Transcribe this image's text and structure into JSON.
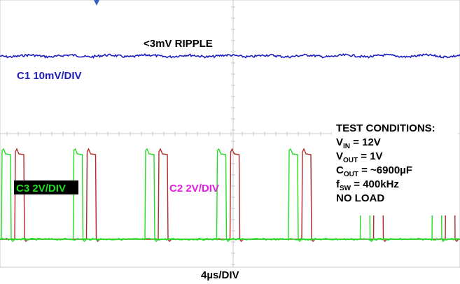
{
  "chart_data": {
    "type": "line",
    "title": "",
    "annotation": "<3mV RIPPLE",
    "xlabel": "4µs/DIV",
    "grid": true,
    "time_per_div_us": 4,
    "switching_frequency_khz": 400,
    "series": [
      {
        "name": "C1 10mV/DIV",
        "channel": "C1",
        "scale": "10mV/DIV",
        "color": "#1f1fbf",
        "waveform": "output voltage ripple",
        "ripple_mv_max": 3
      },
      {
        "name": "C2 2V/DIV",
        "channel": "C2",
        "scale": "2V/DIV",
        "color": "#b22a2a",
        "waveform": "switch node pulse train",
        "frequency_khz": 400
      },
      {
        "name": "C3 2V/DIV",
        "channel": "C3",
        "scale": "2V/DIV",
        "color": "#22dd22",
        "waveform": "switch node pulse train",
        "frequency_khz": 400
      }
    ],
    "test_conditions": {
      "heading": "TEST CONDITIONS:",
      "lines": [
        {
          "sym": "V",
          "sub": "IN",
          "value": " = 12V"
        },
        {
          "sym": "V",
          "sub": "OUT",
          "value": " = 1V"
        },
        {
          "sym": "C",
          "sub": "OUT",
          "value": " = ~6900µF"
        },
        {
          "sym": "f",
          "sub": "SW",
          "value": " = 400kHz"
        },
        {
          "sym": "NO LOAD",
          "sub": "",
          "value": ""
        }
      ]
    }
  },
  "colors": {
    "grid": "#c8c8c8",
    "c1": "#1f1fbf",
    "c2": "#b22a2a",
    "c3": "#22dd22",
    "marker": "#3060c0"
  }
}
